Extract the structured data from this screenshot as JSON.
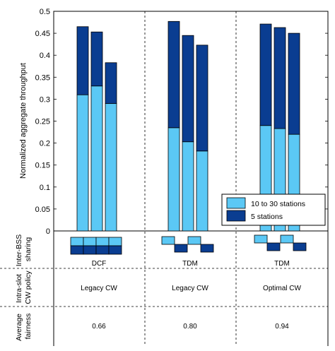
{
  "chart_data": {
    "type": "bar",
    "stacked": true,
    "ylabel": "Normalized aggregate throughput",
    "ylim": [
      0,
      0.5
    ],
    "yticks": [
      "0",
      "0.05",
      "0.1",
      "0.15",
      "0.2",
      "0.25",
      "0.3",
      "0.35",
      "0.4",
      "0.45",
      "0.5"
    ],
    "grid": "dashed vertical separators",
    "legend_position": "lower-right",
    "colors": {
      "light": "#5bc8f5",
      "dark": "#0a3d91",
      "outline": "#000000"
    },
    "series": [
      {
        "name": "10 to 30 stations",
        "color": "#5bc8f5"
      },
      {
        "name": "5 stations",
        "color": "#0a3d91"
      }
    ],
    "groups": [
      {
        "bars": [
          {
            "light": 0.31,
            "total": 0.465
          },
          {
            "light": 0.33,
            "total": 0.453
          },
          {
            "light": 0.29,
            "total": 0.383
          }
        ]
      },
      {
        "bars": [
          {
            "light": 0.235,
            "total": 0.477
          },
          {
            "light": 0.203,
            "total": 0.445
          },
          {
            "light": 0.182,
            "total": 0.423
          }
        ]
      },
      {
        "bars": [
          {
            "light": 0.24,
            "total": 0.471
          },
          {
            "light": 0.233,
            "total": 0.463
          },
          {
            "light": 0.22,
            "total": 0.45
          }
        ]
      }
    ]
  },
  "table": {
    "row_labels": [
      "Inter-BSS sharing",
      "Intra-slot CW policy",
      "Average fairness"
    ],
    "sharing": [
      "DCF",
      "TDM",
      "TDM"
    ],
    "cw_policy": [
      "Legacy CW",
      "Legacy CW",
      "Optimal CW"
    ],
    "fairness": [
      "0.66",
      "0.80",
      "0.94"
    ],
    "sharing_icons": [
      "dcf-blocks-icon",
      "tdm-staggered-blocks-icon",
      "tdm-staggered-blocks-icon"
    ]
  }
}
